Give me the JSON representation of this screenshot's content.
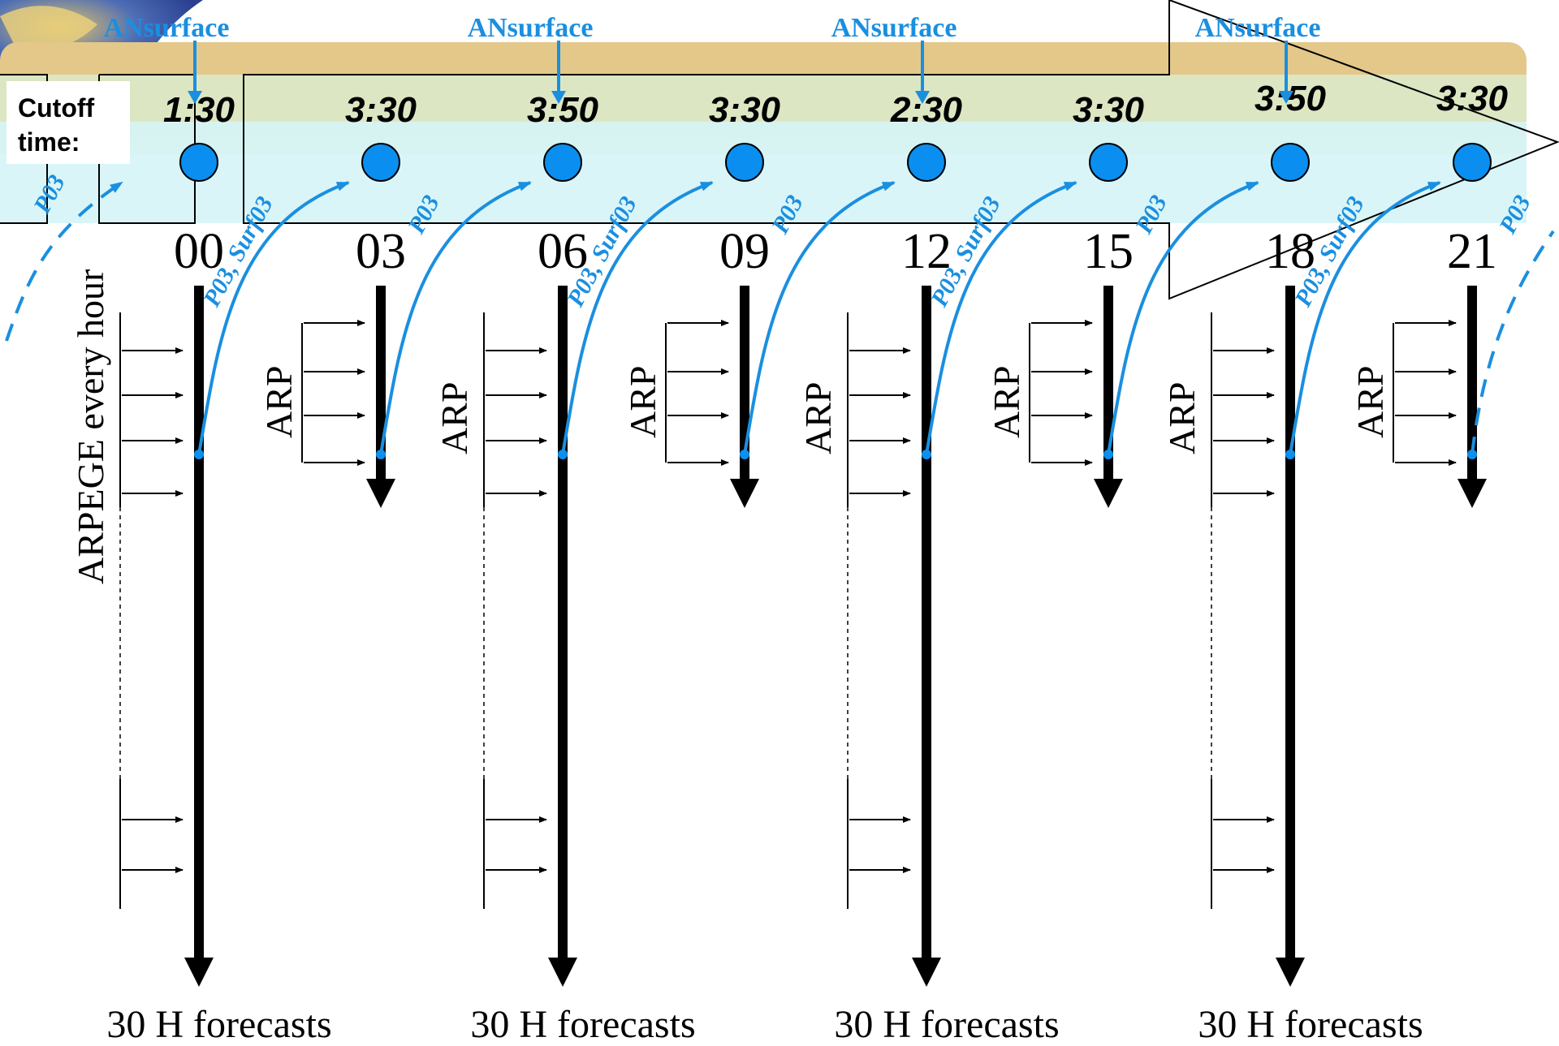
{
  "cutoff_label": {
    "line1": "Cutoff",
    "line2": "time:"
  },
  "ansurface_label": "ANsurface",
  "cycles": [
    {
      "hour": "00",
      "cutoff": "1:30",
      "kind": "long",
      "ansurface": true,
      "coupling": "P03, Surf03",
      "side_label": "ARPEGE every hour",
      "forecast": "30 H forecasts"
    },
    {
      "hour": "03",
      "cutoff": "3:30",
      "kind": "short",
      "ansurface": false,
      "coupling": "P03",
      "side_label": "ARP"
    },
    {
      "hour": "06",
      "cutoff": "3:50",
      "kind": "long",
      "ansurface": true,
      "coupling": "P03, Surf03",
      "side_label": "ARP",
      "forecast": "30 H forecasts"
    },
    {
      "hour": "09",
      "cutoff": "3:30",
      "kind": "short",
      "ansurface": false,
      "coupling": "P03",
      "side_label": "ARP"
    },
    {
      "hour": "12",
      "cutoff": "2:30",
      "kind": "long",
      "ansurface": true,
      "coupling": "P03, Surf03",
      "side_label": "ARP",
      "forecast": "30 H forecasts"
    },
    {
      "hour": "15",
      "cutoff": "3:30",
      "kind": "short",
      "ansurface": false,
      "coupling": "P03",
      "side_label": "ARP"
    },
    {
      "hour": "18",
      "cutoff": "3:50",
      "kind": "long",
      "ansurface": true,
      "coupling": "P03, Surf03",
      "side_label": "ARP",
      "forecast": "30 H forecasts"
    },
    {
      "hour": "21",
      "cutoff": "3:30",
      "kind": "short",
      "ansurface": false,
      "coupling": "P03",
      "side_label": "ARP"
    }
  ],
  "incoming_coupling": "P03",
  "colors": {
    "band_orange": "#e3c88a",
    "band_green": "#dbe8c6",
    "band_cyan": "#d6f4f6",
    "blue": "#1a8fe0",
    "dot": "#0a8ff0",
    "black": "#000000"
  }
}
